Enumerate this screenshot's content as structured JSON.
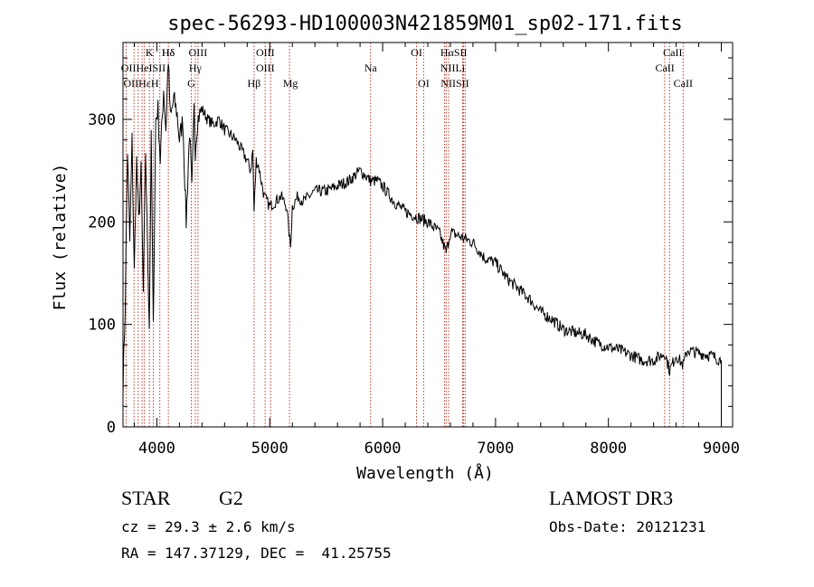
{
  "chart_data": {
    "type": "line",
    "title": "spec-56293-HD100003N421859M01_sp02-171.fits",
    "xlabel": "Wavelength (Å)",
    "ylabel": "Flux (relative)",
    "xlim": [
      3700,
      9100
    ],
    "ylim": [
      0,
      375
    ],
    "xticks": [
      4000,
      5000,
      6000,
      7000,
      8000,
      9000
    ],
    "yticks": [
      0,
      100,
      200,
      300
    ],
    "grid": false,
    "series": [
      {
        "name": "spectrum",
        "x": [
          3700,
          3720,
          3740,
          3760,
          3780,
          3800,
          3820,
          3840,
          3860,
          3880,
          3900,
          3920,
          3933,
          3950,
          3968,
          3990,
          4010,
          4030,
          4060,
          4080,
          4101,
          4120,
          4150,
          4180,
          4200,
          4230,
          4260,
          4290,
          4310,
          4330,
          4340,
          4360,
          4380,
          4400,
          4450,
          4500,
          4550,
          4600,
          4650,
          4700,
          4750,
          4800,
          4830,
          4850,
          4861,
          4880,
          4900,
          4950,
          5000,
          5050,
          5100,
          5150,
          5170,
          5184,
          5200,
          5250,
          5300,
          5400,
          5500,
          5600,
          5700,
          5800,
          5850,
          5893,
          5950,
          6000,
          6100,
          6200,
          6300,
          6400,
          6500,
          6563,
          6600,
          6700,
          6800,
          6900,
          7000,
          7100,
          7200,
          7300,
          7400,
          7500,
          7600,
          7700,
          7800,
          7900,
          8000,
          8100,
          8200,
          8300,
          8400,
          8500,
          8542,
          8600,
          8662,
          8700,
          8800,
          8900,
          9000
        ],
        "y": [
          40,
          120,
          270,
          180,
          280,
          150,
          260,
          200,
          250,
          130,
          270,
          160,
          100,
          280,
          95,
          300,
          310,
          260,
          330,
          290,
          360,
          300,
          320,
          305,
          280,
          300,
          200,
          290,
          230,
          310,
          270,
          300,
          305,
          310,
          300,
          295,
          300,
          290,
          285,
          280,
          270,
          260,
          250,
          270,
          210,
          260,
          255,
          225,
          215,
          220,
          225,
          215,
          190,
          175,
          215,
          225,
          220,
          230,
          230,
          235,
          240,
          250,
          245,
          240,
          240,
          235,
          220,
          210,
          205,
          200,
          190,
          170,
          190,
          185,
          180,
          165,
          160,
          145,
          135,
          125,
          112,
          105,
          95,
          92,
          90,
          82,
          78,
          75,
          70,
          65,
          65,
          72,
          55,
          70,
          60,
          75,
          72,
          70,
          65
        ]
      }
    ],
    "line_labels": [
      {
        "text": "Hδ",
        "wl": 4102,
        "row": 1,
        "font": "serif"
      },
      {
        "text": "K",
        "wl": 3934,
        "row": 1,
        "font": "serif"
      },
      {
        "text": "Hδ",
        "wl": 4101,
        "row": 1,
        "font": "serif"
      },
      {
        "text": "OIII",
        "wl": 4364,
        "row": 1,
        "font": "serif"
      },
      {
        "text": "OIII",
        "wl": 4960,
        "row": 1,
        "font": "serif"
      },
      {
        "text": "OI",
        "wl": 6300,
        "row": 1,
        "font": "serif"
      },
      {
        "text": "HαSII",
        "wl": 6630,
        "row": 1,
        "font": "serif"
      },
      {
        "text": "CaII",
        "wl": 8570,
        "row": 1,
        "font": "serif"
      },
      {
        "text": "OIIHeISII",
        "wl": 3880,
        "row": 2,
        "font": "serif"
      },
      {
        "text": "Hγ",
        "wl": 4340,
        "row": 2,
        "font": "serif"
      },
      {
        "text": "OIII",
        "wl": 4960,
        "row": 2,
        "font": "serif"
      },
      {
        "text": "Na",
        "wl": 5893,
        "row": 2,
        "font": "serif"
      },
      {
        "text": "NIILi",
        "wl": 6620,
        "row": 2,
        "font": "serif"
      },
      {
        "text": "CaII",
        "wl": 8500,
        "row": 2,
        "font": "serif"
      },
      {
        "text": "OIIHεH",
        "wl": 3860,
        "row": 3,
        "font": "serif"
      },
      {
        "text": "G",
        "wl": 4305,
        "row": 3,
        "font": "serif"
      },
      {
        "text": "Hβ",
        "wl": 4861,
        "row": 3,
        "font": "serif"
      },
      {
        "text": "Mg",
        "wl": 5183,
        "row": 3,
        "font": "serif"
      },
      {
        "text": "OI",
        "wl": 6363,
        "row": 3,
        "font": "serif"
      },
      {
        "text": "NIISII",
        "wl": 6640,
        "row": 3,
        "font": "serif"
      },
      {
        "text": "CaII",
        "wl": 8662,
        "row": 3,
        "font": "serif"
      }
    ],
    "line_marks": [
      3727,
      3798,
      3835,
      3869,
      3889,
      3934,
      3968,
      4026,
      4102,
      4305,
      4340,
      4364,
      4861,
      4959,
      5007,
      5175,
      5893,
      6300,
      6363,
      6548,
      6563,
      6584,
      6708,
      6717,
      6731,
      8498,
      8542,
      8662
    ]
  },
  "info": {
    "object_class": "STAR",
    "subclass": "G2",
    "survey": "LAMOST DR3",
    "redshift": "cz = 29.3 ± 2.6 km/s",
    "obs_date": "Obs-Date: 20121231",
    "coords": "RA = 147.37129, DEC =  41.25755"
  },
  "colors": {
    "axis": "#000000",
    "spectrum": "#000000",
    "line_mark": "#c0392b"
  }
}
